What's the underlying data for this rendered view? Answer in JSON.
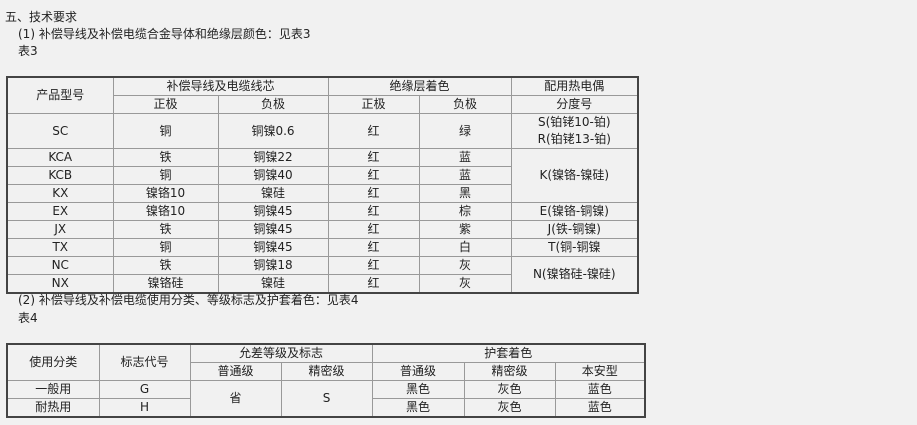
{
  "heading": "五、技术要求",
  "item1": "(1) 补偿导线及补偿电缆合金导体和绝缘层颜色：见表3",
  "table3_label": "表3",
  "table3": {
    "headers": {
      "model": "产品型号",
      "core": "补偿导线及电缆线芯",
      "insulation": "绝缘层着色",
      "thermocouple": "配用热电偶",
      "thermocouple2": "分度号",
      "pos": "正极",
      "neg": "负极"
    },
    "rows": [
      {
        "model": "SC",
        "pos": "铜",
        "neg": "铜镍0.6",
        "ipos": "红",
        "ineg": "绿"
      },
      {
        "model": "KCA",
        "pos": "铁",
        "neg": "铜镍22",
        "ipos": "红",
        "ineg": "蓝"
      },
      {
        "model": "KCB",
        "pos": "铜",
        "neg": "铜镍40",
        "ipos": "红",
        "ineg": "蓝"
      },
      {
        "model": "KX",
        "pos": "镍铬10",
        "neg": "镍硅",
        "ipos": "红",
        "ineg": "黑"
      },
      {
        "model": "EX",
        "pos": "镍铬10",
        "neg": "铜镍45",
        "ipos": "红",
        "ineg": "棕"
      },
      {
        "model": "JX",
        "pos": "铁",
        "neg": "铜镍45",
        "ipos": "红",
        "ineg": "紫"
      },
      {
        "model": "TX",
        "pos": "铜",
        "neg": "铜镍45",
        "ipos": "红",
        "ineg": "白"
      },
      {
        "model": "NC",
        "pos": "铁",
        "neg": "铜镍18",
        "ipos": "红",
        "ineg": "灰"
      },
      {
        "model": "NX",
        "pos": "镍铬硅",
        "neg": "镍硅",
        "ipos": "红",
        "ineg": "灰"
      }
    ],
    "tc": {
      "s": "S(铂铑10-铂)",
      "r": "R(铂铑13-铂)",
      "k": "K(镍铬-镍硅)",
      "e": "E(镍铬-铜镍)",
      "j": "J(铁-铜镍)",
      "t": "T(铜-铜镍",
      "n": "N(镍铬硅-镍硅)"
    }
  },
  "item2": "(2) 补偿导线及补偿电缆使用分类、等级标志及护套着色：见表4",
  "table4_label": "表4",
  "table4": {
    "headers": {
      "use": "使用分类",
      "code": "标志代号",
      "tol": "允差等级及标志",
      "sheath": "护套着色",
      "normal": "普通级",
      "precise": "精密级",
      "normal2": "普通级",
      "precise2": "精密级",
      "safe": "本安型"
    },
    "rows": [
      {
        "use": "一般用",
        "code": "G",
        "c1": "黑色",
        "c2": "灰色",
        "c3": "蓝色"
      },
      {
        "use": "耐热用",
        "code": "H",
        "c1": "黑色",
        "c2": "灰色",
        "c3": "蓝色"
      }
    ],
    "tol_normal": "省",
    "tol_precise": "S"
  }
}
